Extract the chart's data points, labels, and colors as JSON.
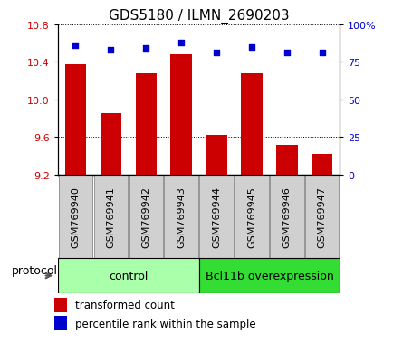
{
  "title": "GDS5180 / ILMN_2690203",
  "samples": [
    "GSM769940",
    "GSM769941",
    "GSM769942",
    "GSM769943",
    "GSM769944",
    "GSM769945",
    "GSM769946",
    "GSM769947"
  ],
  "transformed_count": [
    10.37,
    9.85,
    10.28,
    10.48,
    9.62,
    10.28,
    9.52,
    9.42
  ],
  "percentile_rank": [
    86,
    83,
    84,
    88,
    81,
    85,
    81,
    81
  ],
  "ylim_left": [
    9.2,
    10.8
  ],
  "ylim_right": [
    0,
    100
  ],
  "yticks_left": [
    9.2,
    9.6,
    10.0,
    10.4,
    10.8
  ],
  "yticks_right": [
    0,
    25,
    50,
    75,
    100
  ],
  "bar_color": "#cc0000",
  "scatter_color": "#0000cc",
  "bar_width": 0.6,
  "groups": [
    {
      "label": "control",
      "start": 0,
      "end": 4,
      "color": "#aaffaa"
    },
    {
      "label": "Bcl11b overexpression",
      "start": 4,
      "end": 8,
      "color": "#33dd33"
    }
  ],
  "protocol_label": "protocol",
  "legend_bar_label": "transformed count",
  "legend_scatter_label": "percentile rank within the sample",
  "title_fontsize": 11,
  "tick_label_fontsize": 8,
  "sample_label_fontsize": 8,
  "group_label_fontsize": 9,
  "legend_fontsize": 8.5
}
